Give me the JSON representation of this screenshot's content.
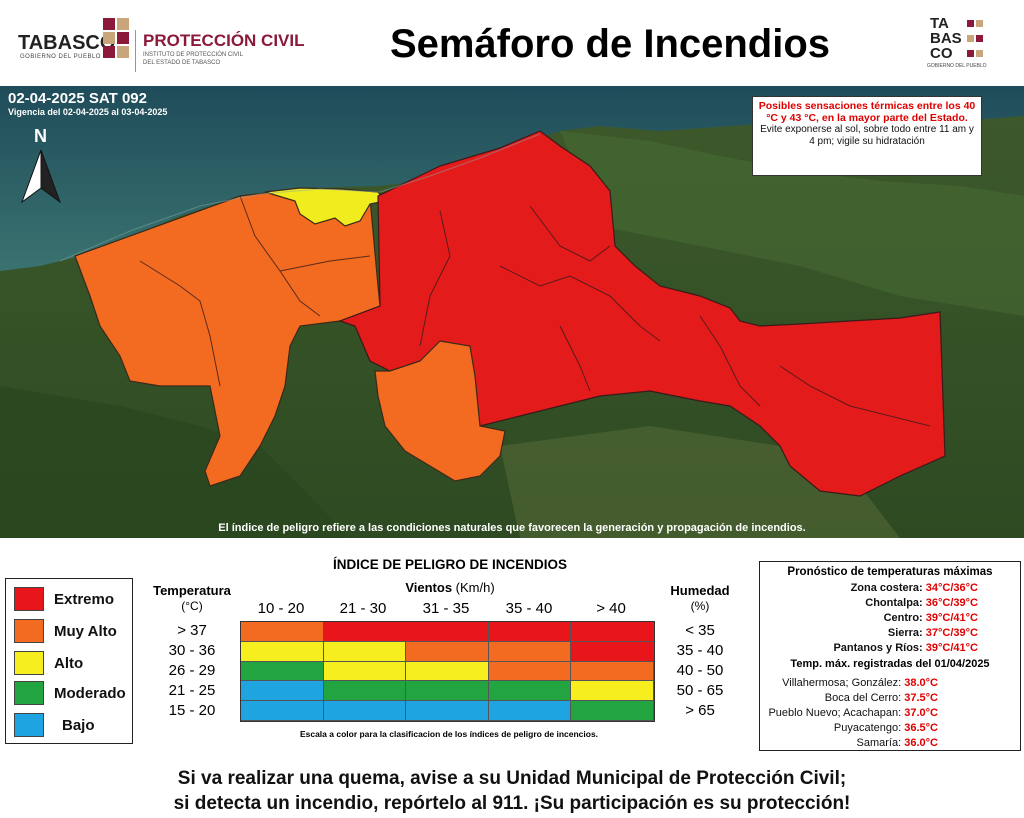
{
  "header": {
    "logo_left_word": "TABASCO",
    "logo_left_sub": "GOBIERNO DEL PUEBLO",
    "pc_name": "PROTECCIÓN CIVIL",
    "pc_sub1": "INSTITUTO DE PROTECCIÓN CIVIL",
    "pc_sub2": "DEL ESTADO DE TABASCO",
    "title": "Semáforo de Incendios",
    "logo_right_l1": "TA",
    "logo_right_l2": "BAS",
    "logo_right_l3": "CO",
    "logo_right_sub": "GOBIERNO DEL PUEBLO"
  },
  "map": {
    "date_code": "02-04-2025 SAT 092",
    "validity": "Vigencia del 02-04-2025 al 03-04-2025",
    "north_label": "N",
    "alert_red": "Posibles sensaciones térmicas entre los 40 °C y 43 °C, en la mayor parte del Estado.",
    "alert_black": "Evite exponerse al sol, sobre todo entre 11 am y 4 pm; vigile su hidratación",
    "caption": "El índice de peligro refiere a las condiciones naturales que favorecen la generación y propagación de incendios.",
    "colors": {
      "extremo": "#e31b1b",
      "muy_alto": "#f5731f",
      "alto": "#f0ec1e",
      "sea": "#2c5e6b",
      "land": "#3c5a2a"
    }
  },
  "legend": [
    {
      "label": "Extremo",
      "color": "#e8161b"
    },
    {
      "label": "Muy Alto",
      "color": "#f26b21"
    },
    {
      "label": "Alto",
      "color": "#f6ee1f"
    },
    {
      "label": "Moderado",
      "color": "#22a541"
    },
    {
      "label": "Bajo",
      "color": "#1ea4e0"
    }
  ],
  "index_table": {
    "title": "ÍNDICE DE PELIGRO DE INCENDIOS",
    "temp_header": "Temperatura",
    "temp_unit": "(°C)",
    "wind_header": "Vientos",
    "wind_unit": "(Km/h)",
    "hum_header": "Humedad",
    "hum_unit": "(%)",
    "wind_ranges": [
      "10 - 20",
      "21 - 30",
      "31 - 35",
      "35 - 40",
      "> 40"
    ],
    "temp_ranges": [
      "> 37",
      "30 - 36",
      "26 - 29",
      "21 - 25",
      "15 - 20"
    ],
    "hum_ranges": [
      "< 35",
      "35 - 40",
      "40 - 50",
      "50 - 65",
      "> 65"
    ],
    "cells": [
      [
        "#f26b21",
        "#e8161b",
        "#e8161b",
        "#e8161b",
        "#e8161b"
      ],
      [
        "#f6ee1f",
        "#f6ee1f",
        "#f26b21",
        "#f26b21",
        "#e8161b"
      ],
      [
        "#22a541",
        "#f6ee1f",
        "#f6ee1f",
        "#f26b21",
        "#f26b21"
      ],
      [
        "#1ea4e0",
        "#22a541",
        "#22a541",
        "#22a541",
        "#f6ee1f"
      ],
      [
        "#1ea4e0",
        "#1ea4e0",
        "#1ea4e0",
        "#1ea4e0",
        "#22a541"
      ]
    ],
    "scale_caption": "Escala a color para la clasificacion de los índices de peligro de incencios."
  },
  "forecast": {
    "title": "Pronóstico de temperaturas máximas",
    "zones": [
      {
        "label": "Zona costera:",
        "value": "34°C/36°C"
      },
      {
        "label": "Chontalpa:",
        "value": "36°C/39°C"
      },
      {
        "label": "Centro:",
        "value": "39°C/41°C"
      },
      {
        "label": "Sierra:",
        "value": "37°C/39°C"
      },
      {
        "label": "Pantanos y Ríos:",
        "value": "39°C/41°C"
      }
    ],
    "registered_title": "Temp. máx. registradas del 01/04/2025",
    "registered": [
      {
        "label": "Villahermosa; González:",
        "value": "38.0°C"
      },
      {
        "label": "Boca del Cerro:",
        "value": "37.5°C"
      },
      {
        "label": "Pueblo Nuevo; Acachapan:",
        "value": "37.0°C"
      },
      {
        "label": "Puyacatengo:",
        "value": "36.5°C"
      },
      {
        "label": "Samaría:",
        "value": "36.0°C"
      }
    ]
  },
  "footer": {
    "line1": "Si va realizar una quema, avise a su Unidad Municipal de Protección Civil;",
    "line2": "si detecta un incendio, repórtelo al 911. ¡Su participación es su protección!"
  }
}
